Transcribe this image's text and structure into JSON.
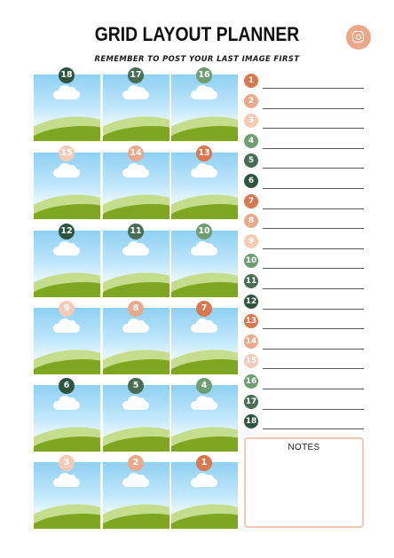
{
  "title": "GRID LAYOUT PLANNER",
  "subtitle": "REMEMBER TO POST YOUR LAST IMAGE FIRST",
  "icon": "instagram-icon",
  "colors": {
    "1": "#d9774f",
    "2": "#eba98b",
    "3": "#f4cbb6",
    "4": "#6e9e72",
    "5": "#496d52",
    "6": "#2e5440"
  },
  "grid": [
    {
      "n": "18",
      "c": "6"
    },
    {
      "n": "17",
      "c": "5"
    },
    {
      "n": "16",
      "c": "4"
    },
    {
      "n": "15",
      "c": "3"
    },
    {
      "n": "14",
      "c": "2"
    },
    {
      "n": "13",
      "c": "1"
    },
    {
      "n": "12",
      "c": "6"
    },
    {
      "n": "11",
      "c": "5"
    },
    {
      "n": "10",
      "c": "4"
    },
    {
      "n": "9",
      "c": "3"
    },
    {
      "n": "8",
      "c": "2"
    },
    {
      "n": "7",
      "c": "1"
    },
    {
      "n": "6",
      "c": "6"
    },
    {
      "n": "5",
      "c": "5"
    },
    {
      "n": "4",
      "c": "4"
    },
    {
      "n": "3",
      "c": "3"
    },
    {
      "n": "2",
      "c": "2"
    },
    {
      "n": "1",
      "c": "1"
    }
  ],
  "list": [
    {
      "n": "1",
      "c": "1"
    },
    {
      "n": "2",
      "c": "2"
    },
    {
      "n": "3",
      "c": "3"
    },
    {
      "n": "4",
      "c": "4"
    },
    {
      "n": "5",
      "c": "5"
    },
    {
      "n": "6",
      "c": "6"
    },
    {
      "n": "7",
      "c": "1"
    },
    {
      "n": "8",
      "c": "2"
    },
    {
      "n": "9",
      "c": "3"
    },
    {
      "n": "10",
      "c": "4"
    },
    {
      "n": "11",
      "c": "5"
    },
    {
      "n": "12",
      "c": "6"
    },
    {
      "n": "13",
      "c": "1"
    },
    {
      "n": "14",
      "c": "2"
    },
    {
      "n": "15",
      "c": "3"
    },
    {
      "n": "16",
      "c": "4"
    },
    {
      "n": "17",
      "c": "5"
    },
    {
      "n": "18",
      "c": "6"
    }
  ],
  "notes_label": "NOTES"
}
